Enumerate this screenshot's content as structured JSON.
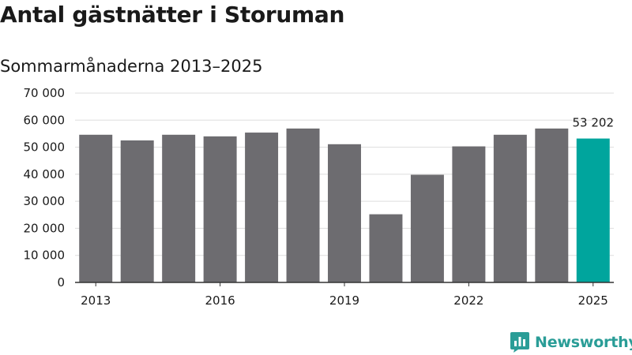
{
  "chart_data": {
    "type": "bar",
    "title": "Antal gästnätter i Storuman",
    "subtitle": "Sommarmånaderna 2013–2025",
    "xlabel": "",
    "ylabel": "",
    "categories": [
      "2013",
      "2014",
      "2015",
      "2016",
      "2017",
      "2018",
      "2019",
      "2020",
      "2021",
      "2022",
      "2023",
      "2024",
      "2025"
    ],
    "values": [
      54600,
      52500,
      54600,
      54000,
      55400,
      56900,
      51100,
      25200,
      39800,
      50300,
      54600,
      56900,
      53202
    ],
    "ylim": [
      0,
      70000
    ],
    "yticks": [
      0,
      10000,
      20000,
      30000,
      40000,
      50000,
      60000,
      70000
    ],
    "ytick_labels": [
      "0",
      "10 000",
      "20 000",
      "30 000",
      "40 000",
      "50 000",
      "60 000",
      "70 000"
    ],
    "xtick_labels": [
      "2013",
      "2016",
      "2019",
      "2022",
      "2025"
    ],
    "highlight": {
      "category": "2025",
      "label": "53 202"
    },
    "colors": {
      "bar": "#6d6c70",
      "highlight": "#00a59d",
      "grid": "#dddddd",
      "axis": "#333333"
    },
    "grid": true,
    "legend": "none"
  },
  "brand": {
    "name": "Newsworthy",
    "icon": "bar-chart-speech-icon",
    "color": "#2a9d97"
  }
}
